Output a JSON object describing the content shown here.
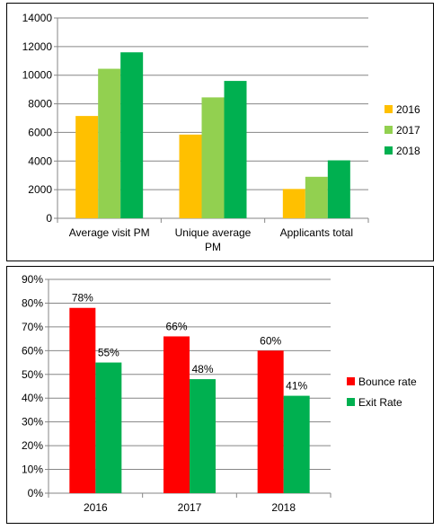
{
  "chart_data": [
    {
      "type": "bar",
      "categories": [
        "Average visit PM",
        "Unique average PM",
        "Applicants total"
      ],
      "category_lines": [
        [
          "Average visit PM"
        ],
        [
          "Unique average",
          "PM"
        ],
        [
          "Applicants total"
        ]
      ],
      "series": [
        {
          "name": "2016",
          "values": [
            7150,
            5850,
            2050
          ],
          "color": "#FFC000"
        },
        {
          "name": "2017",
          "values": [
            10450,
            8450,
            2900
          ],
          "color": "#92D050"
        },
        {
          "name": "2018",
          "values": [
            11600,
            9600,
            4050
          ],
          "color": "#00B050"
        }
      ],
      "ylim": [
        0,
        14000
      ],
      "yticks": [
        "0",
        "2000",
        "4000",
        "6000",
        "8000",
        "10000",
        "12000",
        "14000"
      ],
      "grid": true,
      "legend": "right"
    },
    {
      "type": "bar",
      "categories": [
        "2016",
        "2017",
        "2018"
      ],
      "series": [
        {
          "name": "Bounce rate",
          "values": [
            78,
            66,
            60
          ],
          "labels": [
            "78%",
            "66%",
            "60%"
          ],
          "color": "#FF0000"
        },
        {
          "name": "Exit Rate",
          "values": [
            55,
            48,
            41
          ],
          "labels": [
            "55%",
            "48%",
            "41%"
          ],
          "color": "#00B050"
        }
      ],
      "ylim": [
        0,
        90
      ],
      "yticks": [
        "0%",
        "10%",
        "20%",
        "30%",
        "40%",
        "50%",
        "60%",
        "70%",
        "80%",
        "90%"
      ],
      "grid": true,
      "legend": "right"
    }
  ]
}
